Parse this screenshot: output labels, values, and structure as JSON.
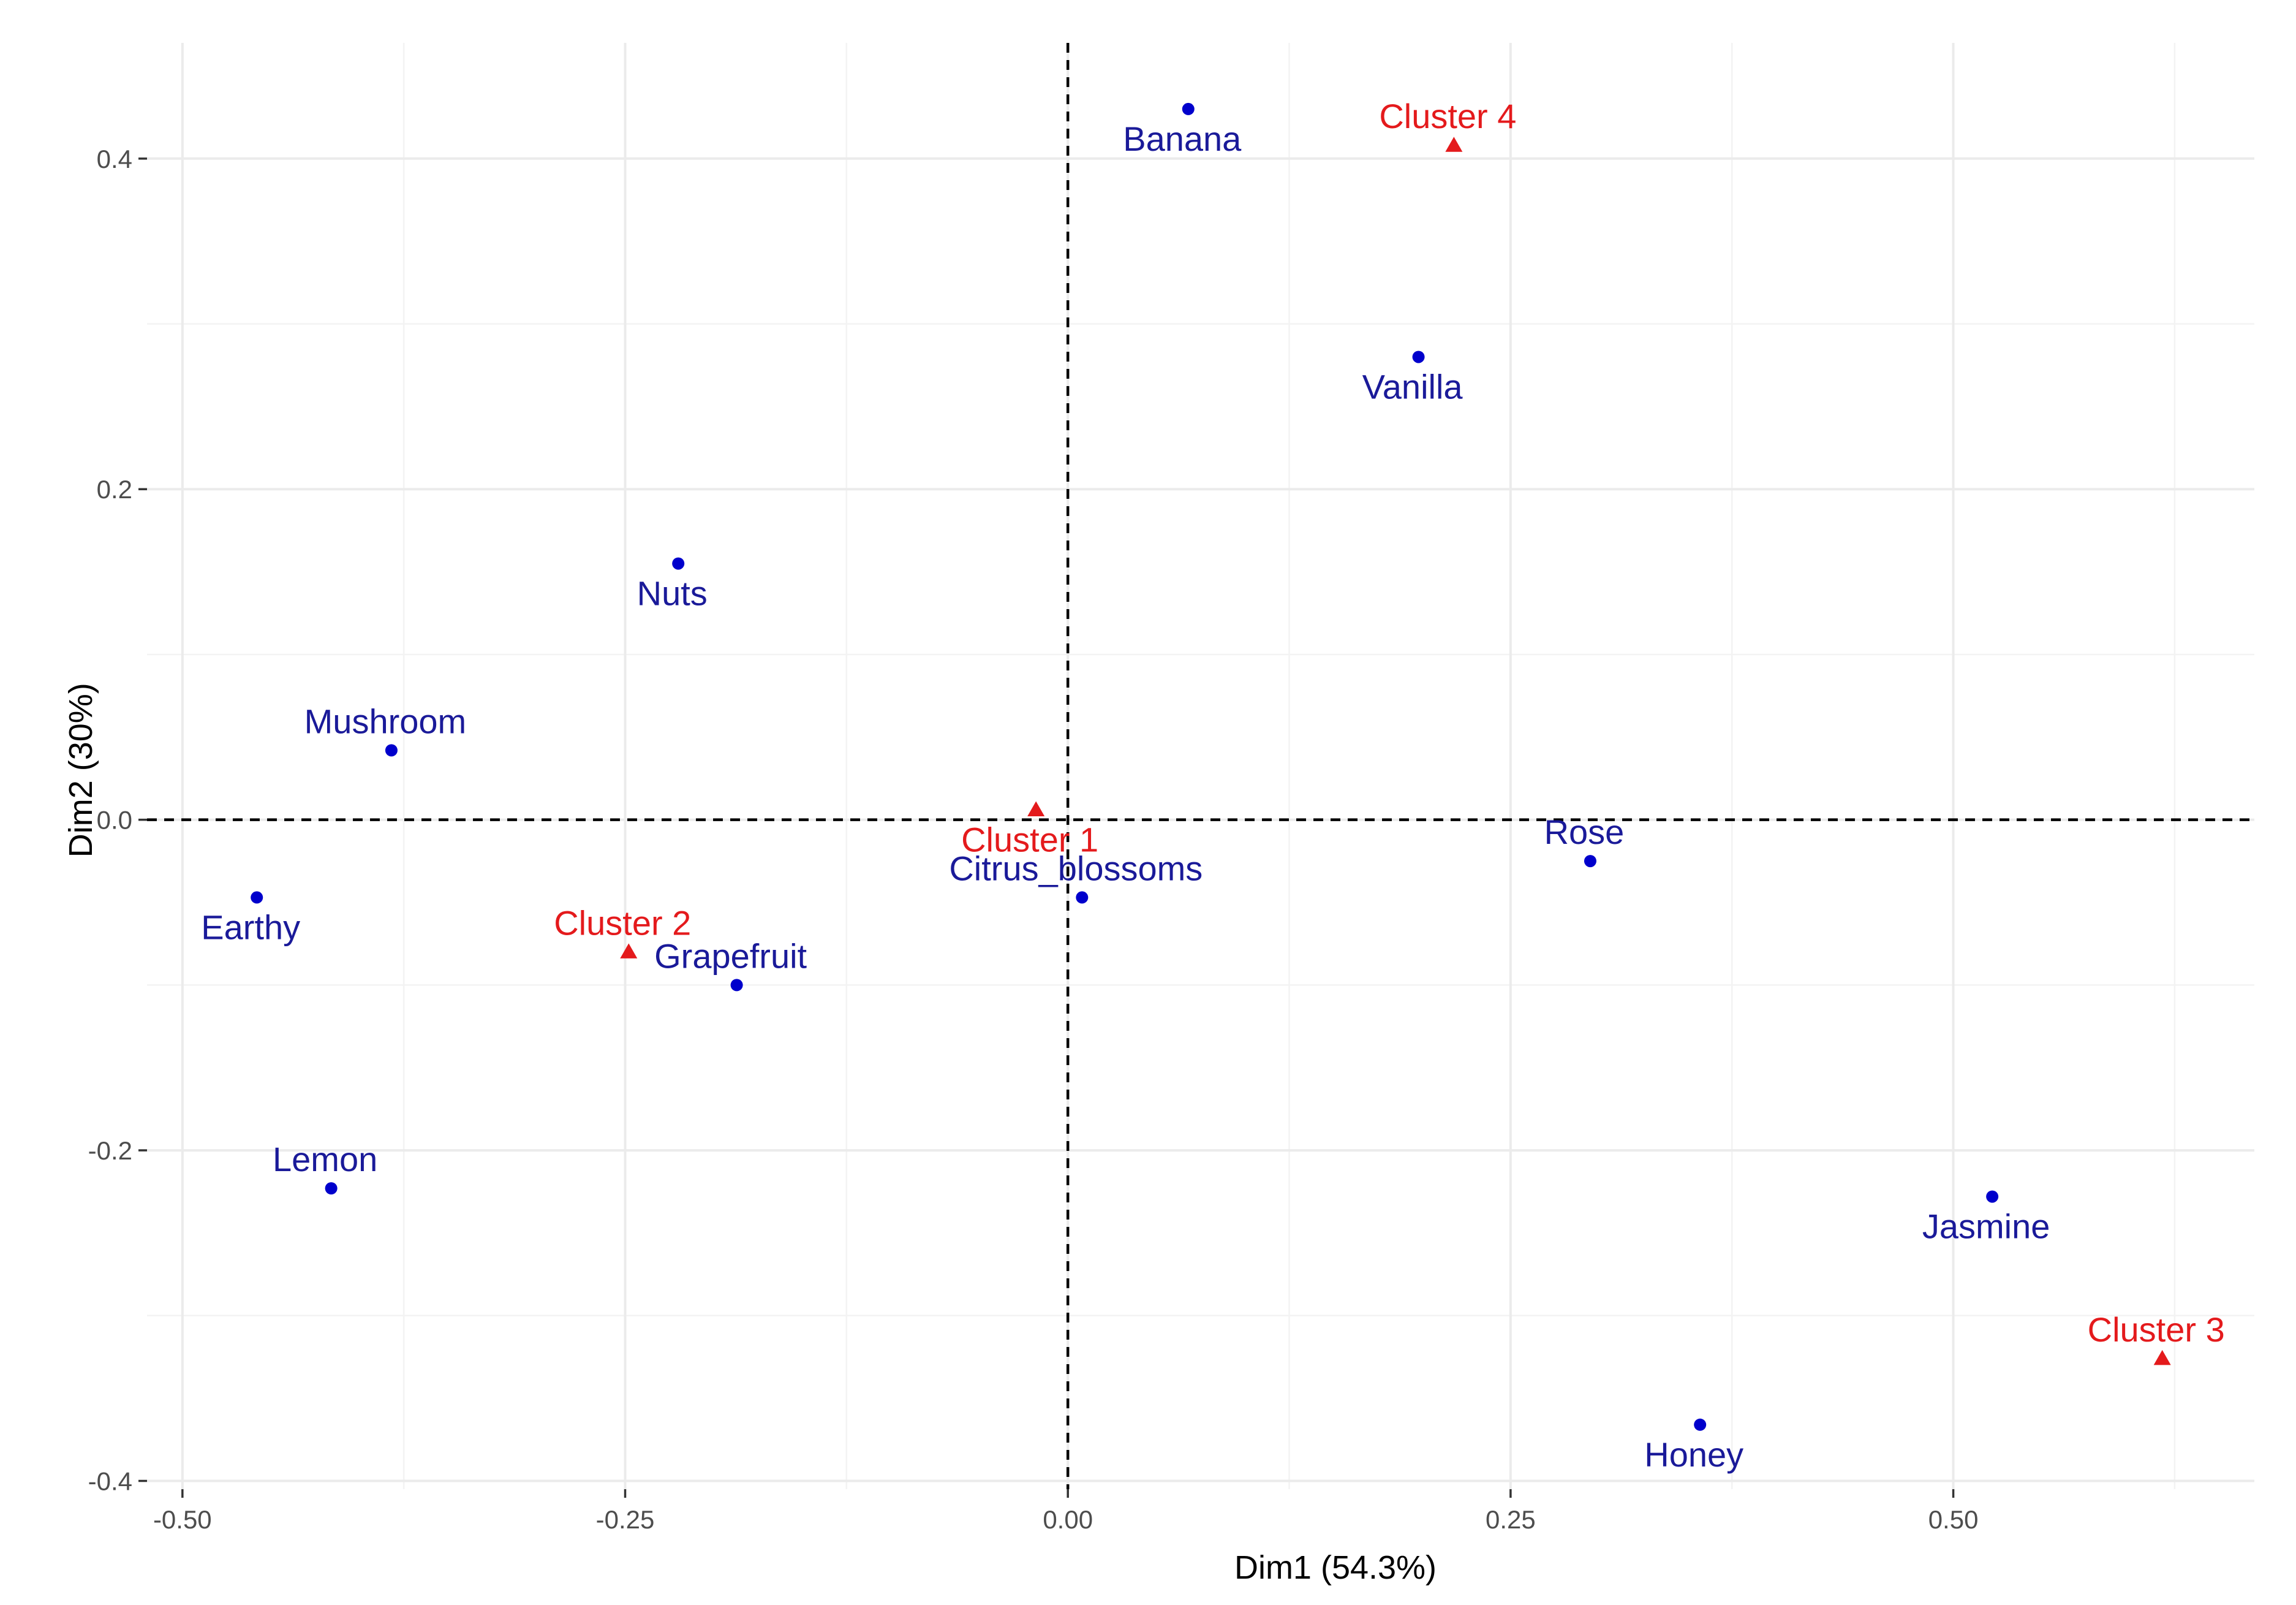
{
  "chart_data": {
    "type": "scatter",
    "title": "",
    "xlabel": "Dim1 (54.3%)",
    "ylabel": "Dim2 (30%)",
    "xlim": [
      -0.52,
      0.67
    ],
    "ylim": [
      -0.405,
      0.47
    ],
    "xticks": [
      -0.5,
      -0.25,
      0.0,
      0.25,
      0.5
    ],
    "xtick_labels": [
      "-0.50",
      "-0.25",
      "0.00",
      "0.25",
      "0.50"
    ],
    "yticks": [
      -0.4,
      -0.2,
      0.0,
      0.2,
      0.4
    ],
    "ytick_labels": [
      "-0.4",
      "-0.2",
      "0.0",
      "0.2",
      "0.4"
    ],
    "grid": true,
    "reference_lines": {
      "x": 0,
      "y": 0,
      "style": "dashed"
    },
    "colors": {
      "variables": "#0000cc",
      "clusters": "#e41a1c",
      "variable_text": "#1a1a99",
      "cluster_text": "#e41a1c"
    },
    "series": [
      {
        "name": "variables",
        "marker": "circle",
        "points": [
          {
            "label": "Banana",
            "x": 0.068,
            "y": 0.43,
            "label_pos": "below"
          },
          {
            "label": "Vanilla",
            "x": 0.198,
            "y": 0.28,
            "label_pos": "below"
          },
          {
            "label": "Nuts",
            "x": -0.22,
            "y": 0.155,
            "label_pos": "below"
          },
          {
            "label": "Mushroom",
            "x": -0.382,
            "y": 0.042,
            "label_pos": "above"
          },
          {
            "label": "Earthy",
            "x": -0.458,
            "y": -0.047,
            "label_pos": "below"
          },
          {
            "label": "Citrus_blossoms",
            "x": 0.008,
            "y": -0.047,
            "label_pos": "above"
          },
          {
            "label": "Rose",
            "x": 0.295,
            "y": -0.025,
            "label_pos": "above"
          },
          {
            "label": "Grapefruit",
            "x": -0.187,
            "y": -0.1,
            "label_pos": "above"
          },
          {
            "label": "Lemon",
            "x": -0.416,
            "y": -0.223,
            "label_pos": "above"
          },
          {
            "label": "Jasmine",
            "x": 0.522,
            "y": -0.228,
            "label_pos": "below"
          },
          {
            "label": "Honey",
            "x": 0.357,
            "y": -0.366,
            "label_pos": "below"
          }
        ]
      },
      {
        "name": "clusters",
        "marker": "triangle",
        "points": [
          {
            "label": "Cluster 4",
            "x": 0.218,
            "y": 0.408,
            "label_pos": "above"
          },
          {
            "label": "Cluster 1",
            "x": -0.018,
            "y": 0.006,
            "label_pos": "below"
          },
          {
            "label": "Cluster 2",
            "x": -0.248,
            "y": -0.08,
            "label_pos": "above"
          },
          {
            "label": "Cluster 3",
            "x": 0.618,
            "y": -0.326,
            "label_pos": "above"
          }
        ]
      }
    ]
  }
}
